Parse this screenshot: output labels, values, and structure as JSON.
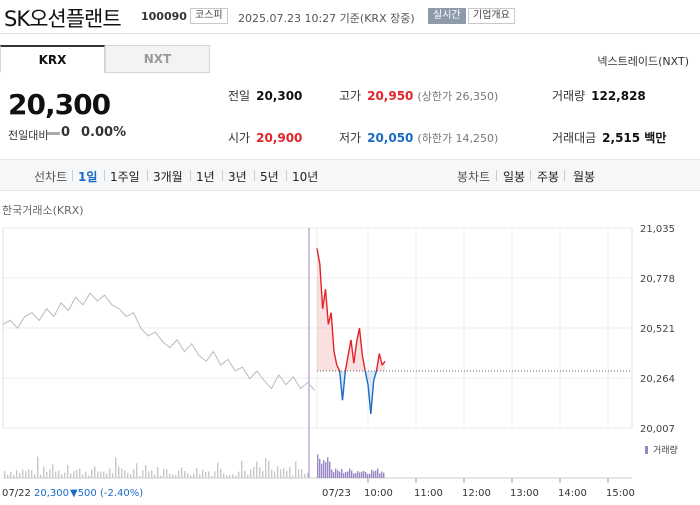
{
  "header": {
    "title": "SK오션플랜트",
    "code": "100090",
    "market": "코스피",
    "updated": "2025.07.23 10:27 기준(KRX 장중)",
    "live": "실시간",
    "info": "기업개요"
  },
  "tabs": {
    "krx": "KRX",
    "nxt": "NXT",
    "nxt_link": "넥스트레이드(NXT)"
  },
  "quote": {
    "price": "20,300",
    "change_label": "전일대비",
    "change_value": "0",
    "change_pct": "0.00%"
  },
  "stats": {
    "prev_close_label": "전일",
    "prev_close": "20,300",
    "high_label": "고가",
    "high": "20,950",
    "upper_limit": "(상한가 26,350)",
    "volume_label": "거래량",
    "volume": "122,828",
    "open_label": "시가",
    "open": "20,900",
    "low_label": "저가",
    "low": "20,050",
    "lower_limit": "(하한가 14,250)",
    "amount_label": "거래대금",
    "amount": "2,515 백만"
  },
  "periods": {
    "line_label": "선차트",
    "line": [
      "1일",
      "1주일",
      "3개월",
      "1년",
      "3년",
      "5년",
      "10년"
    ],
    "selected": "1일",
    "candle_label": "봉차트",
    "candle": [
      "일봉",
      "주봉",
      "월봉"
    ]
  },
  "exchange_label": "한국거래소(KRX)",
  "colors": {
    "up": "#e2232a",
    "down": "#1a6bc6",
    "prev": "#bbbbbb",
    "volume": "#9a86c2"
  },
  "chart_data": {
    "type": "line",
    "ylim": [
      20007,
      21035
    ],
    "yticks": [
      "21,035",
      "20,778",
      "20,521",
      "20,264",
      "20,007"
    ],
    "xticks": [
      "07/23",
      "10:00",
      "11:00",
      "12:00",
      "13:00",
      "14:00",
      "15:00"
    ],
    "base": 20300,
    "volume_legend": "거래량",
    "series": [
      {
        "values": [
          20540,
          20560,
          20520,
          20580,
          20600,
          20560,
          20620,
          20580,
          20650,
          20610,
          20680,
          20640,
          20700,
          20660,
          20690,
          20640,
          20620,
          20580,
          20600,
          20520,
          20480,
          20500,
          20450,
          20420,
          20460,
          20400,
          20440,
          20380,
          20350,
          20400,
          20330,
          20360,
          20300,
          20320,
          20260,
          20300,
          20250,
          20210,
          20280,
          20230,
          20270,
          20210,
          20240,
          20200
        ]
      },
      {
        "values": [
          20930,
          20850,
          20620,
          20720,
          20540,
          20600,
          20400,
          20330,
          20300,
          20150,
          20300,
          20380,
          20460,
          20340,
          20450,
          20520,
          20380,
          20300,
          20230,
          20080,
          20250,
          20300,
          20390,
          20330,
          20350
        ]
      }
    ]
  },
  "footer": {
    "prev_date": "07/22",
    "prev_close": "20,300",
    "change": "▼500 (-2.40%)"
  }
}
